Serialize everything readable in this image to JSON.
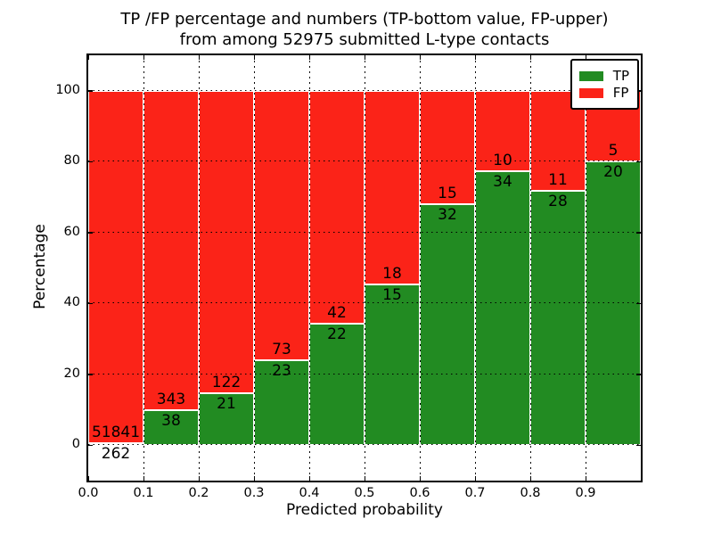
{
  "chart_data": {
    "type": "bar",
    "stacked": true,
    "title_lines": [
      "TP /FP percentage and numbers (TP-bottom value, FP-upper)",
      "from among 52975 submitted L-type contacts"
    ],
    "xlabel": "Predicted probability",
    "ylabel": "Percentage",
    "x_tick_labels": [
      "0.0",
      "0.1",
      "0.2",
      "0.3",
      "0.4",
      "0.5",
      "0.6",
      "0.7",
      "0.8",
      "0.9"
    ],
    "y_tick_values": [
      0,
      20,
      40,
      60,
      80,
      100
    ],
    "xlim": [
      0,
      1
    ],
    "ylim": [
      -10,
      110
    ],
    "bin_width": 0.1,
    "grid": "dotted",
    "legend_position": "upper-right",
    "series": [
      {
        "name": "TP",
        "color": "#228b22",
        "counts": [
          262,
          38,
          21,
          23,
          22,
          15,
          32,
          34,
          28,
          20
        ]
      },
      {
        "name": "FP",
        "color": "#fb2318",
        "counts": [
          51841,
          343,
          122,
          73,
          42,
          18,
          15,
          10,
          11,
          5
        ]
      }
    ],
    "tp_percent": [
      0.5,
      10.0,
      14.7,
      24.0,
      34.4,
      45.5,
      68.1,
      77.3,
      71.8,
      80.0
    ]
  },
  "colors": {
    "tp_green": "#228b22",
    "fp_red": "#fb2318",
    "axis": "#000000",
    "background": "#ffffff"
  }
}
